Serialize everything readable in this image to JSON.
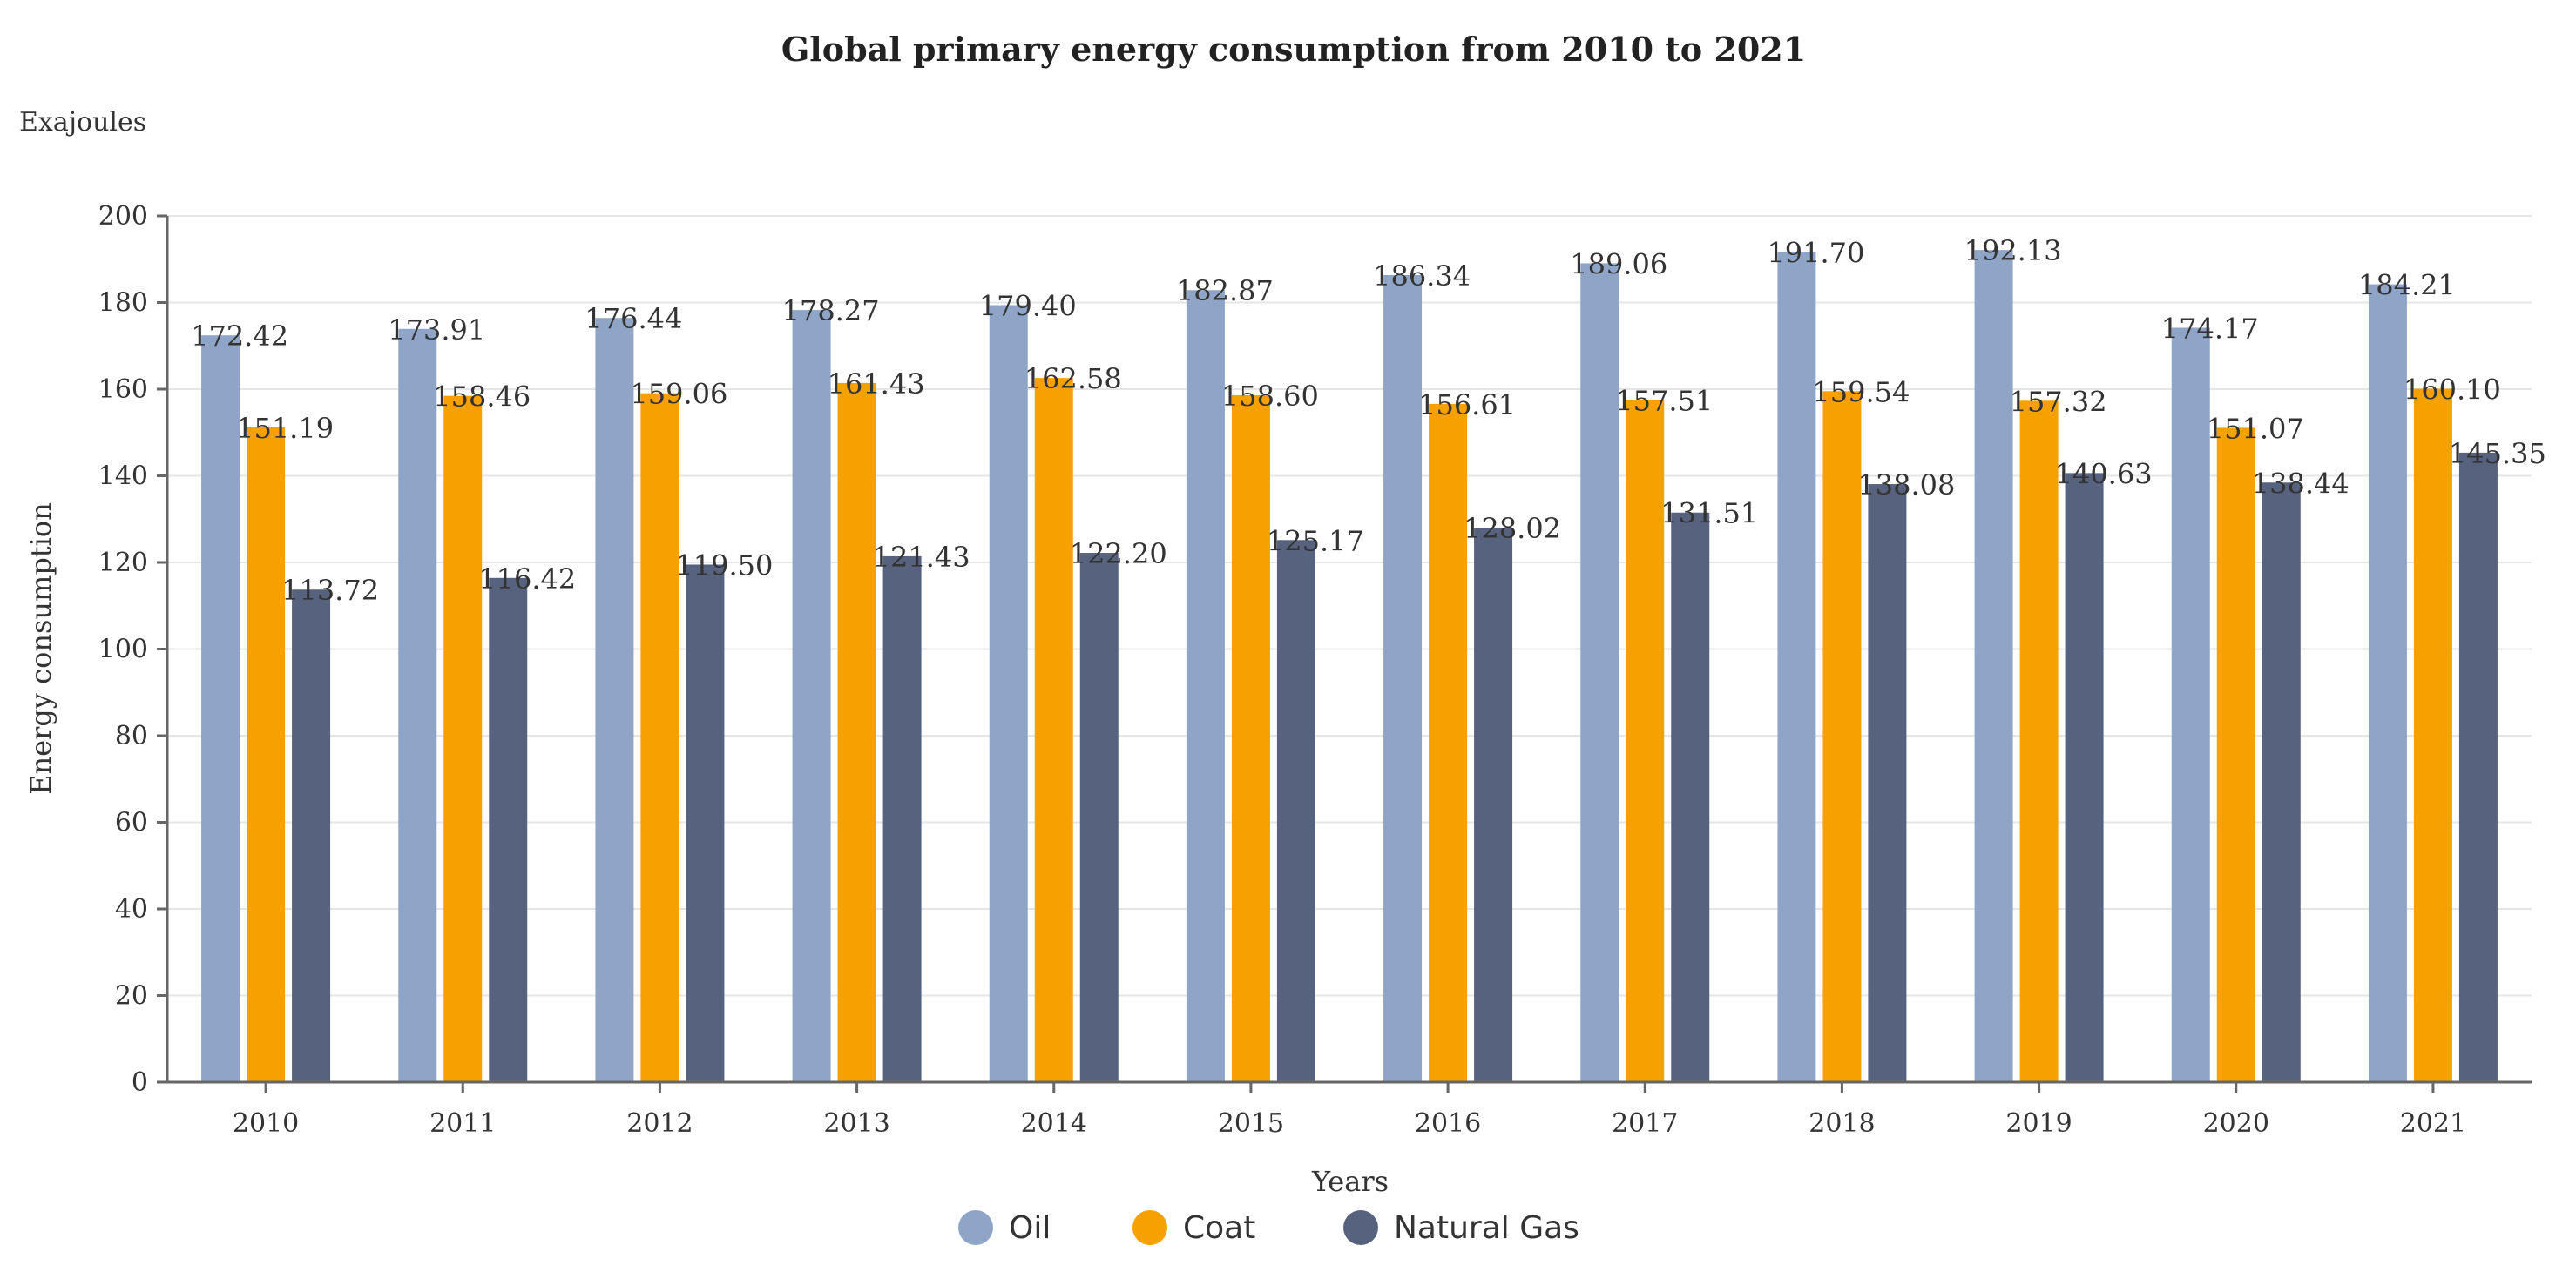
{
  "chart_data": {
    "type": "bar",
    "title": "Global primary energy consumption from 2010 to 2021",
    "unit_label": "Exajoules",
    "xlabel": "Years",
    "ylabel": "Energy consumption",
    "ylim": [
      0,
      200
    ],
    "yticks": [
      0,
      20,
      40,
      60,
      80,
      100,
      120,
      140,
      160,
      180,
      200
    ],
    "grid": true,
    "legend_position": "bottom-center",
    "categories": [
      "2010",
      "2011",
      "2012",
      "2013",
      "2014",
      "2015",
      "2016",
      "2017",
      "2018",
      "2019",
      "2020",
      "2021"
    ],
    "series": [
      {
        "name": "Oil",
        "color": "#8ea5c8",
        "values": [
          172.42,
          173.91,
          176.44,
          178.27,
          179.4,
          182.87,
          186.34,
          189.06,
          191.7,
          192.13,
          174.17,
          184.21
        ],
        "labels": [
          "172.42",
          "173.91",
          "176.44",
          "178.27",
          "179.40",
          "182.87",
          "186.34",
          "189.06",
          "191.70",
          "192.13",
          "174.17",
          "184.21"
        ]
      },
      {
        "name": "Coat",
        "color": "#f7a100",
        "values": [
          151.19,
          158.46,
          159.06,
          161.43,
          162.58,
          158.6,
          156.61,
          157.51,
          159.54,
          157.32,
          151.07,
          160.1
        ],
        "labels": [
          "151.19",
          "158.46",
          "159.06",
          "161.43",
          "162.58",
          "158.60",
          "156.61",
          "157.51",
          "159.54",
          "157.32",
          "151.07",
          "160.10"
        ]
      },
      {
        "name": "Natural Gas",
        "color": "#56627e",
        "values": [
          113.72,
          116.42,
          119.5,
          121.43,
          122.2,
          125.17,
          128.02,
          131.51,
          138.08,
          140.63,
          138.44,
          145.35
        ],
        "labels": [
          "113.72",
          "116.42",
          "119.50",
          "121.43",
          "122.20",
          "125.17",
          "128.02",
          "131.51",
          "138.08",
          "140.63",
          "138.44",
          "145.35"
        ]
      }
    ]
  }
}
